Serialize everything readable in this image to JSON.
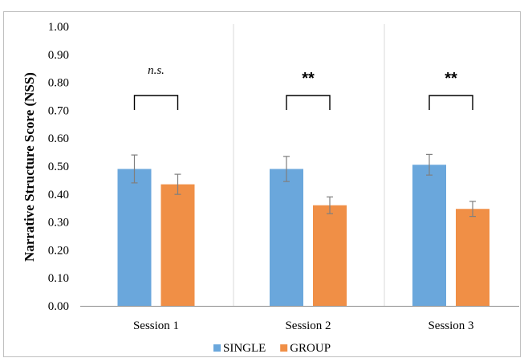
{
  "chart_data": {
    "type": "bar",
    "title": "",
    "ylabel": "Narrative Structure Score (NSS)",
    "xlabel": "",
    "ylim": [
      0,
      1.0
    ],
    "yticks": [
      "0.00",
      "0.10",
      "0.20",
      "0.30",
      "0.40",
      "0.50",
      "0.60",
      "0.70",
      "0.80",
      "0.90",
      "1.00"
    ],
    "categories": [
      "Session 1",
      "Session 2",
      "Session 3"
    ],
    "series": [
      {
        "name": "SINGLE",
        "color": "#6aa7dc",
        "values": [
          0.49,
          0.49,
          0.505
        ],
        "errors": [
          0.05,
          0.045,
          0.037
        ]
      },
      {
        "name": "GROUP",
        "color": "#f08f46",
        "values": [
          0.435,
          0.36,
          0.347
        ],
        "errors": [
          0.036,
          0.03,
          0.027
        ]
      }
    ],
    "significance": [
      "n.s.",
      "**",
      "**"
    ],
    "legend_position": "bottom",
    "grid": false
  }
}
